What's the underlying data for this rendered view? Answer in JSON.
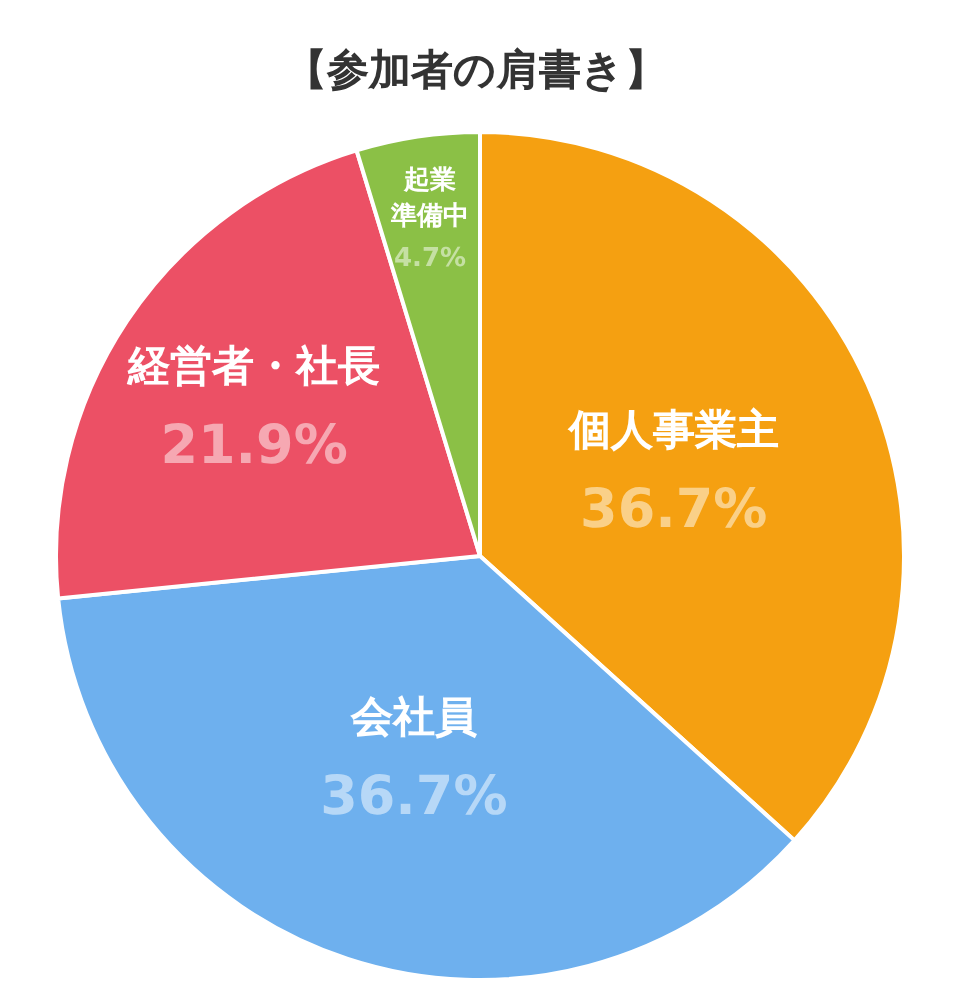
{
  "chart_data": {
    "type": "pie",
    "title": "【参加者の肩書き】",
    "categories": [
      "個人事業主",
      "会社員",
      "経営者・社長",
      "起業準備中"
    ],
    "values": [
      36.7,
      36.7,
      21.9,
      4.7
    ],
    "colors": [
      "#f5a011",
      "#6eb0ee",
      "#ec5065",
      "#8bc046"
    ],
    "value_labels": [
      "36.7%",
      "36.7%",
      "21.9%",
      "4.7%"
    ]
  }
}
